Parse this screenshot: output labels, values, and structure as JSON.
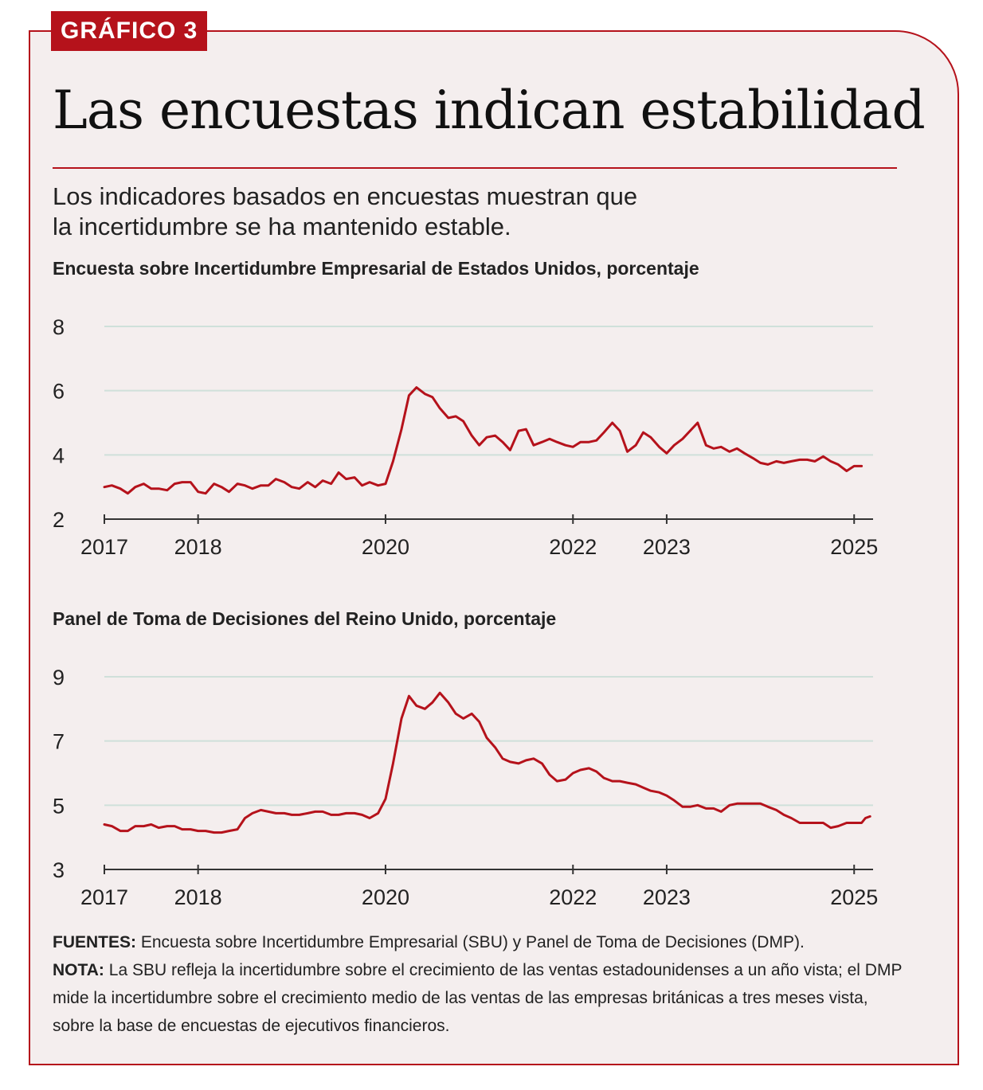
{
  "badge": "GRÁFICO 3",
  "title": "Las encuestas indican estabilidad",
  "subtitle_line1": "Los indicadores basados en encuestas muestran que",
  "subtitle_line2": "la incertidumbre se ha mantenido estable.",
  "colors": {
    "accent": "#b5121b",
    "background": "#f4eeee",
    "gridline": "#cfe0da",
    "axis": "#333333",
    "text": "#222222"
  },
  "chart_data": [
    {
      "type": "line",
      "title": "Encuesta sobre Incertidumbre Empresarial de Estados Unidos, porcentaje",
      "xlabel": "",
      "ylabel": "",
      "ylim": [
        2,
        8
      ],
      "yticks": [
        2,
        4,
        6,
        8
      ],
      "xlim": [
        2017.0,
        2025.1
      ],
      "xticks": [
        2017,
        2018,
        2020,
        2022,
        2023,
        2025
      ],
      "xtick_labels": [
        "2017",
        "2018",
        "2020",
        "2022",
        "2023",
        "2025"
      ],
      "grid": true,
      "series": [
        {
          "name": "SBU",
          "points": [
            [
              2017.0,
              3.0
            ],
            [
              2017.08,
              3.05
            ],
            [
              2017.17,
              2.95
            ],
            [
              2017.25,
              2.8
            ],
            [
              2017.33,
              3.0
            ],
            [
              2017.42,
              3.1
            ],
            [
              2017.5,
              2.95
            ],
            [
              2017.58,
              2.95
            ],
            [
              2017.67,
              2.9
            ],
            [
              2017.75,
              3.1
            ],
            [
              2017.83,
              3.15
            ],
            [
              2017.92,
              3.15
            ],
            [
              2018.0,
              2.85
            ],
            [
              2018.08,
              2.8
            ],
            [
              2018.17,
              3.1
            ],
            [
              2018.25,
              3.0
            ],
            [
              2018.33,
              2.85
            ],
            [
              2018.42,
              3.1
            ],
            [
              2018.5,
              3.05
            ],
            [
              2018.58,
              2.95
            ],
            [
              2018.67,
              3.05
            ],
            [
              2018.75,
              3.05
            ],
            [
              2018.83,
              3.25
            ],
            [
              2018.92,
              3.15
            ],
            [
              2019.0,
              3.0
            ],
            [
              2019.08,
              2.95
            ],
            [
              2019.17,
              3.15
            ],
            [
              2019.25,
              3.0
            ],
            [
              2019.33,
              3.2
            ],
            [
              2019.42,
              3.1
            ],
            [
              2019.5,
              3.45
            ],
            [
              2019.58,
              3.25
            ],
            [
              2019.67,
              3.3
            ],
            [
              2019.75,
              3.05
            ],
            [
              2019.83,
              3.15
            ],
            [
              2019.92,
              3.05
            ],
            [
              2020.0,
              3.1
            ],
            [
              2020.08,
              3.8
            ],
            [
              2020.17,
              4.8
            ],
            [
              2020.25,
              5.85
            ],
            [
              2020.33,
              6.1
            ],
            [
              2020.42,
              5.9
            ],
            [
              2020.5,
              5.8
            ],
            [
              2020.58,
              5.45
            ],
            [
              2020.67,
              5.15
            ],
            [
              2020.75,
              5.2
            ],
            [
              2020.83,
              5.05
            ],
            [
              2020.92,
              4.6
            ],
            [
              2021.0,
              4.3
            ],
            [
              2021.08,
              4.55
            ],
            [
              2021.17,
              4.6
            ],
            [
              2021.25,
              4.4
            ],
            [
              2021.33,
              4.15
            ],
            [
              2021.42,
              4.75
            ],
            [
              2021.5,
              4.8
            ],
            [
              2021.58,
              4.3
            ],
            [
              2021.67,
              4.4
            ],
            [
              2021.75,
              4.5
            ],
            [
              2021.83,
              4.4
            ],
            [
              2021.92,
              4.3
            ],
            [
              2022.0,
              4.25
            ],
            [
              2022.08,
              4.4
            ],
            [
              2022.17,
              4.4
            ],
            [
              2022.25,
              4.45
            ],
            [
              2022.33,
              4.7
            ],
            [
              2022.42,
              5.0
            ],
            [
              2022.5,
              4.75
            ],
            [
              2022.58,
              4.1
            ],
            [
              2022.67,
              4.3
            ],
            [
              2022.75,
              4.7
            ],
            [
              2022.83,
              4.55
            ],
            [
              2022.92,
              4.25
            ],
            [
              2023.0,
              4.05
            ],
            [
              2023.08,
              4.3
            ],
            [
              2023.17,
              4.5
            ],
            [
              2023.25,
              4.75
            ],
            [
              2023.33,
              5.0
            ],
            [
              2023.42,
              4.3
            ],
            [
              2023.5,
              4.2
            ],
            [
              2023.58,
              4.25
            ],
            [
              2023.67,
              4.1
            ],
            [
              2023.75,
              4.2
            ],
            [
              2023.83,
              4.05
            ],
            [
              2023.92,
              3.9
            ],
            [
              2024.0,
              3.75
            ],
            [
              2024.08,
              3.7
            ],
            [
              2024.17,
              3.8
            ],
            [
              2024.25,
              3.75
            ],
            [
              2024.33,
              3.8
            ],
            [
              2024.42,
              3.85
            ],
            [
              2024.5,
              3.85
            ],
            [
              2024.58,
              3.8
            ],
            [
              2024.67,
              3.95
            ],
            [
              2024.75,
              3.8
            ],
            [
              2024.83,
              3.7
            ],
            [
              2024.92,
              3.5
            ],
            [
              2025.0,
              3.65
            ],
            [
              2025.08,
              3.65
            ]
          ]
        }
      ]
    },
    {
      "type": "line",
      "title": "Panel de Toma de Decisiones del Reino Unido, porcentaje",
      "xlabel": "",
      "ylabel": "",
      "ylim": [
        3,
        9
      ],
      "yticks": [
        3,
        5,
        7,
        9
      ],
      "xlim": [
        2017.0,
        2025.1
      ],
      "xticks": [
        2017,
        2018,
        2020,
        2022,
        2023,
        2025
      ],
      "xtick_labels": [
        "2017",
        "2018",
        "2020",
        "2022",
        "2023",
        "2025"
      ],
      "grid": true,
      "series": [
        {
          "name": "DMP",
          "points": [
            [
              2017.0,
              4.4
            ],
            [
              2017.08,
              4.35
            ],
            [
              2017.17,
              4.2
            ],
            [
              2017.25,
              4.2
            ],
            [
              2017.33,
              4.35
            ],
            [
              2017.42,
              4.35
            ],
            [
              2017.5,
              4.4
            ],
            [
              2017.58,
              4.3
            ],
            [
              2017.67,
              4.35
            ],
            [
              2017.75,
              4.35
            ],
            [
              2017.83,
              4.25
            ],
            [
              2017.92,
              4.25
            ],
            [
              2018.0,
              4.2
            ],
            [
              2018.08,
              4.2
            ],
            [
              2018.17,
              4.15
            ],
            [
              2018.25,
              4.15
            ],
            [
              2018.33,
              4.2
            ],
            [
              2018.42,
              4.25
            ],
            [
              2018.5,
              4.6
            ],
            [
              2018.58,
              4.75
            ],
            [
              2018.67,
              4.85
            ],
            [
              2018.75,
              4.8
            ],
            [
              2018.83,
              4.75
            ],
            [
              2018.92,
              4.75
            ],
            [
              2019.0,
              4.7
            ],
            [
              2019.08,
              4.7
            ],
            [
              2019.17,
              4.75
            ],
            [
              2019.25,
              4.8
            ],
            [
              2019.33,
              4.8
            ],
            [
              2019.42,
              4.7
            ],
            [
              2019.5,
              4.7
            ],
            [
              2019.58,
              4.75
            ],
            [
              2019.67,
              4.75
            ],
            [
              2019.75,
              4.7
            ],
            [
              2019.83,
              4.6
            ],
            [
              2019.92,
              4.75
            ],
            [
              2020.0,
              5.2
            ],
            [
              2020.08,
              6.3
            ],
            [
              2020.17,
              7.7
            ],
            [
              2020.25,
              8.4
            ],
            [
              2020.33,
              8.1
            ],
            [
              2020.42,
              8.0
            ],
            [
              2020.5,
              8.2
            ],
            [
              2020.58,
              8.5
            ],
            [
              2020.67,
              8.2
            ],
            [
              2020.75,
              7.85
            ],
            [
              2020.83,
              7.7
            ],
            [
              2020.92,
              7.85
            ],
            [
              2021.0,
              7.6
            ],
            [
              2021.08,
              7.1
            ],
            [
              2021.17,
              6.8
            ],
            [
              2021.25,
              6.45
            ],
            [
              2021.33,
              6.35
            ],
            [
              2021.42,
              6.3
            ],
            [
              2021.5,
              6.4
            ],
            [
              2021.58,
              6.45
            ],
            [
              2021.67,
              6.3
            ],
            [
              2021.75,
              5.95
            ],
            [
              2021.83,
              5.75
            ],
            [
              2021.92,
              5.8
            ],
            [
              2022.0,
              6.0
            ],
            [
              2022.08,
              6.1
            ],
            [
              2022.17,
              6.15
            ],
            [
              2022.25,
              6.05
            ],
            [
              2022.33,
              5.85
            ],
            [
              2022.42,
              5.75
            ],
            [
              2022.5,
              5.75
            ],
            [
              2022.58,
              5.7
            ],
            [
              2022.67,
              5.65
            ],
            [
              2022.75,
              5.55
            ],
            [
              2022.83,
              5.45
            ],
            [
              2022.92,
              5.4
            ],
            [
              2023.0,
              5.3
            ],
            [
              2023.08,
              5.15
            ],
            [
              2023.17,
              4.95
            ],
            [
              2023.25,
              4.95
            ],
            [
              2023.33,
              5.0
            ],
            [
              2023.42,
              4.9
            ],
            [
              2023.5,
              4.9
            ],
            [
              2023.58,
              4.8
            ],
            [
              2023.67,
              5.0
            ],
            [
              2023.75,
              5.05
            ],
            [
              2023.83,
              5.05
            ],
            [
              2023.92,
              5.05
            ],
            [
              2024.0,
              5.05
            ],
            [
              2024.08,
              4.95
            ],
            [
              2024.17,
              4.85
            ],
            [
              2024.25,
              4.7
            ],
            [
              2024.33,
              4.6
            ],
            [
              2024.42,
              4.45
            ],
            [
              2024.5,
              4.45
            ],
            [
              2024.58,
              4.45
            ],
            [
              2024.67,
              4.45
            ],
            [
              2024.75,
              4.3
            ],
            [
              2024.83,
              4.35
            ],
            [
              2024.92,
              4.45
            ],
            [
              2025.0,
              4.45
            ],
            [
              2025.08,
              4.45
            ],
            [
              2025.12,
              4.6
            ],
            [
              2025.17,
              4.65
            ]
          ]
        }
      ]
    }
  ],
  "footnotes": {
    "sources_label": "FUENTES:",
    "sources_text": " Encuesta sobre Incertidumbre Empresarial (SBU) y Panel de Toma de Decisiones (DMP).",
    "note_label": "NOTA:",
    "note_text": " La SBU refleja la incertidumbre sobre el crecimiento de las ventas estadounidenses a un año vista; el DMP mide la incertidumbre sobre el crecimiento medio de las ventas de las empresas británicas a tres meses vista, sobre la base de encuestas de ejecutivos financieros."
  }
}
